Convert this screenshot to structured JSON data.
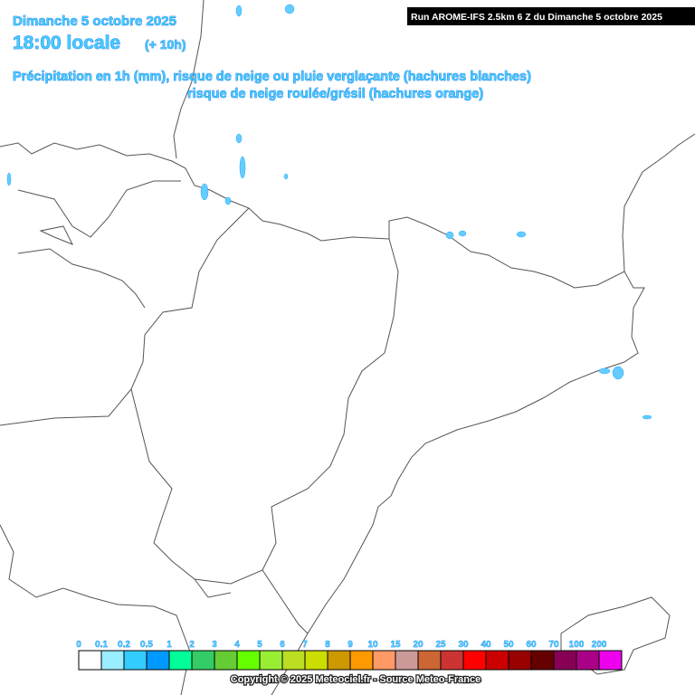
{
  "header": {
    "date": "Dimanche 5 octobre 2025",
    "time": "18:00 locale",
    "offset": "(+ 10h)",
    "subtitle_1": "Précipitation en 1h (mm), risque de neige ou pluie verglaçante (hachures blanches)",
    "subtitle_2": "risque de neige roulée/grésil (hachures orange)",
    "run": "Run AROME-IFS 2.5km 6 Z du Dimanche 5 octobre 2025"
  },
  "legend": {
    "labels": [
      "0",
      "0.1",
      "0.2",
      "0.5",
      "1",
      "2",
      "3",
      "4",
      "5",
      "6",
      "7",
      "8",
      "9",
      "10",
      "15",
      "20",
      "25",
      "30",
      "40",
      "50",
      "60",
      "70",
      "100",
      "200"
    ],
    "colors": [
      "#ffffff",
      "#99eeff",
      "#33ccff",
      "#0099ff",
      "#00ff99",
      "#33cc66",
      "#66cc33",
      "#66ff00",
      "#99ee33",
      "#bbdd22",
      "#ccdd00",
      "#cc9900",
      "#ff9900",
      "#ff9966",
      "#cc9999",
      "#cc6633",
      "#cc3333",
      "#ff0000",
      "#cc0000",
      "#990000",
      "#660000",
      "#880055",
      "#aa0088",
      "#ee00ee"
    ]
  },
  "footer": {
    "copyright": "Copyright © 2025 Meteociel.fr - Source Meteo-France"
  }
}
